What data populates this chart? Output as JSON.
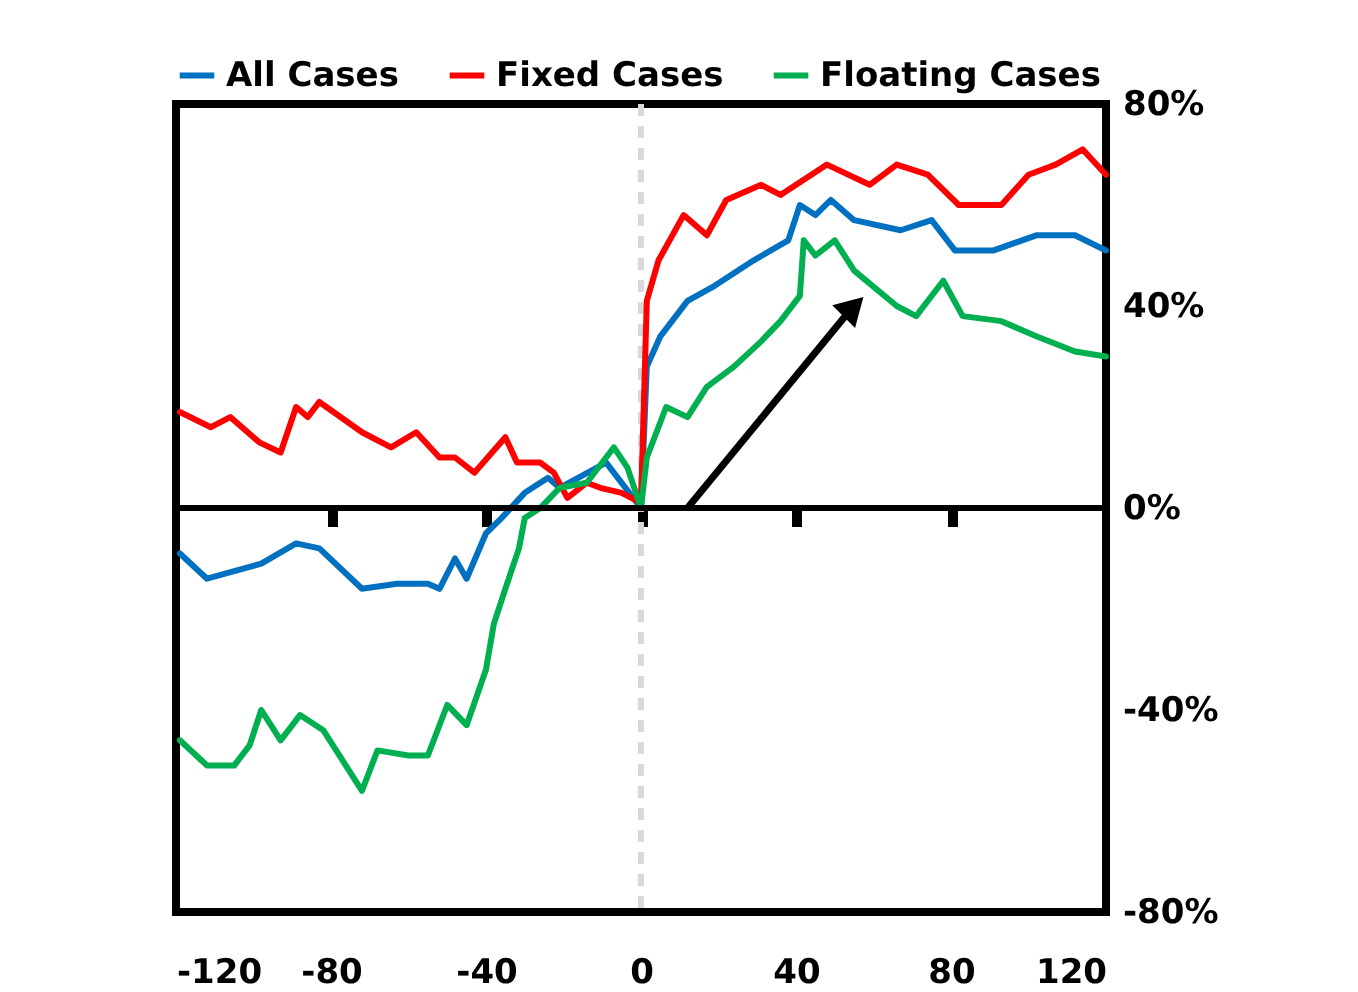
{
  "chart_data": {
    "type": "line",
    "legend": "top",
    "grid": false,
    "line_style": "solid",
    "marker": "none",
    "xlim": [
      -120,
      120
    ],
    "xticks": [
      -120,
      -80,
      -40,
      0,
      40,
      80,
      120
    ],
    "ylim": [
      -80,
      80
    ],
    "yticks": [
      {
        "value": -80,
        "label": "-80%"
      },
      {
        "value": -40,
        "label": "-40%"
      },
      {
        "value": 0,
        "label": "0%"
      },
      {
        "value": 40,
        "label": "40%"
      },
      {
        "value": 80,
        "label": "80%"
      }
    ],
    "ref_lines": [
      {
        "axis": "x",
        "value": 0,
        "label": null,
        "color": "#d9d9d9",
        "line_style": "dashed"
      },
      {
        "axis": "y",
        "value": 0,
        "label": null,
        "color": "#000000",
        "line_style": "solid"
      }
    ],
    "series": [
      {
        "name": "All Cases",
        "color": "#0070c0",
        "x": [
          -119,
          -112,
          -98,
          -89,
          -83,
          -72,
          -63,
          -55,
          -52,
          -48,
          -45,
          -40,
          -36,
          -30,
          -24,
          -21,
          -9,
          -4,
          0,
          1.5,
          5,
          12,
          19,
          29,
          38,
          41,
          45,
          49,
          55,
          67,
          75,
          81,
          91,
          102,
          112,
          120
        ],
        "values": [
          -9,
          -14,
          -11,
          -7,
          -8,
          -16,
          -15,
          -15,
          -16,
          -10,
          -14,
          -5,
          -2,
          3,
          6,
          4,
          9,
          4,
          0,
          28,
          34,
          41,
          44,
          49,
          53,
          60,
          58,
          61,
          57,
          55,
          57,
          51,
          51,
          54,
          54,
          51
        ]
      },
      {
        "name": "Fixed Cases",
        "color": "#ff0000",
        "x": [
          -119,
          -111,
          -106,
          -98.5,
          -93,
          -89,
          -86,
          -83,
          -72,
          -64.5,
          -58,
          -52,
          -48,
          -43,
          -35,
          -32,
          -26,
          -22.5,
          -19,
          -14,
          -10.5,
          -5,
          0,
          1.5,
          4.5,
          11,
          17,
          22,
          31,
          36,
          48,
          59,
          66,
          74,
          82,
          93,
          100,
          107,
          114,
          120
        ],
        "values": [
          19,
          16,
          18,
          13,
          11,
          20,
          18,
          21,
          15,
          12,
          15,
          10,
          10,
          7,
          14,
          9,
          9,
          7,
          2,
          5,
          4,
          3,
          1,
          41,
          49,
          58,
          54,
          61,
          64,
          62,
          68,
          64,
          68,
          66,
          60,
          60,
          66,
          68,
          71,
          66
        ]
      },
      {
        "name": "Floating Cases",
        "color": "#00b050",
        "x": [
          -119,
          -112,
          -105,
          -101,
          -98,
          -93,
          -88,
          -82,
          -72,
          -68,
          -60,
          -55,
          -50,
          -45,
          -40,
          -38,
          -35,
          -31.5,
          -30,
          -26,
          -21,
          -14,
          -7,
          -3.5,
          0,
          1.5,
          6.5,
          12,
          17,
          24,
          31,
          36,
          41,
          42,
          45,
          50,
          55,
          66,
          71,
          78,
          83,
          93,
          102,
          112,
          120
        ],
        "values": [
          -46,
          -51,
          -51,
          -47,
          -40,
          -46,
          -41,
          -44,
          -56,
          -48,
          -49,
          -49,
          -39,
          -43,
          -32,
          -23,
          -16,
          -8,
          -2,
          0,
          4,
          5,
          12,
          8,
          0,
          10,
          20,
          18,
          24,
          28,
          33,
          37,
          42,
          53,
          50,
          53,
          47,
          40,
          38,
          45,
          38,
          37,
          34,
          31,
          30
        ]
      }
    ]
  }
}
